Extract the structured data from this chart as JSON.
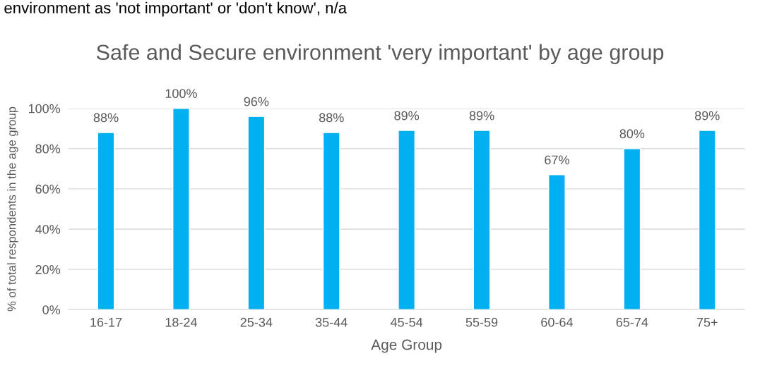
{
  "chart_data": {
    "type": "bar",
    "title": "Safe and Secure environment 'very important' by age group",
    "xlabel": "Age Group",
    "ylabel": "% of total respondents in the age group",
    "annotations": [
      "environment as 'not important' or 'don't know', n/a"
    ],
    "categories": [
      "16-17",
      "18-24",
      "25-34",
      "35-44",
      "45-54",
      "55-59",
      "60-64",
      "65-74",
      "75+"
    ],
    "values": [
      88,
      100,
      96,
      88,
      89,
      89,
      67,
      80,
      89
    ],
    "value_labels": [
      "88%",
      "100%",
      "96%",
      "88%",
      "89%",
      "89%",
      "67%",
      "80%",
      "89%"
    ],
    "color": "#00b0f0",
    "ylim": [
      0,
      100
    ],
    "yticks": [
      {
        "value": 0,
        "label": "0%"
      },
      {
        "value": 20,
        "label": "20%"
      },
      {
        "value": 40,
        "label": "40%"
      },
      {
        "value": 60,
        "label": "60%"
      },
      {
        "value": 80,
        "label": "80%"
      },
      {
        "value": 100,
        "label": "100%"
      }
    ],
    "grid": "y"
  }
}
